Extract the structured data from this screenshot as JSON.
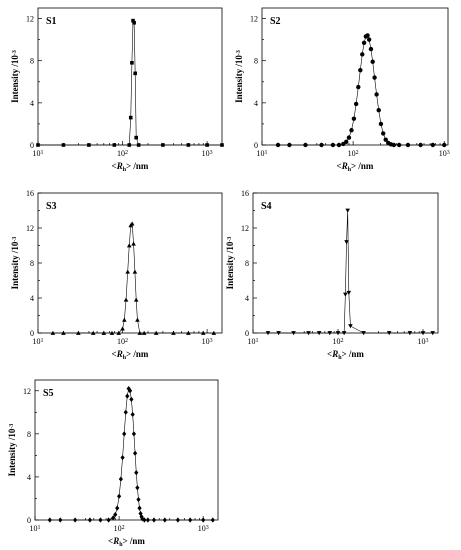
{
  "chart_data": [
    {
      "type": "line",
      "panel_label": "S1",
      "marker": "square",
      "xscale": "log",
      "xlim": [
        10,
        1500
      ],
      "ylim": [
        0,
        13
      ],
      "xticks": [
        {
          "value": 10,
          "base": "10",
          "exp": "1"
        },
        {
          "value": 100,
          "base": "10",
          "exp": "2"
        },
        {
          "value": 1000,
          "base": "10",
          "exp": "3"
        }
      ],
      "yticks": [
        0,
        4,
        8,
        12
      ],
      "xlabel": {
        "pre": "<",
        "sym": "R",
        "sub": "h",
        "post": "> /nm"
      },
      "ylabel": {
        "text": "Intensity /10",
        "sup": "-3"
      },
      "x": [
        10,
        20,
        40,
        80,
        120,
        125,
        129,
        133,
        137,
        141,
        145,
        155,
        300,
        600,
        1000,
        1500
      ],
      "y": [
        0,
        0,
        0,
        0,
        0,
        2.6,
        7.8,
        11.8,
        11.6,
        6.8,
        0.7,
        0,
        0,
        0,
        0,
        0
      ]
    },
    {
      "type": "line",
      "panel_label": "S2",
      "marker": "circle",
      "xscale": "log",
      "xlim": [
        10,
        1100
      ],
      "ylim": [
        0,
        13
      ],
      "xticks": [
        {
          "value": 10,
          "base": "10",
          "exp": "1"
        },
        {
          "value": 100,
          "base": "10",
          "exp": "2"
        },
        {
          "value": 1000,
          "base": "10",
          "exp": "3"
        }
      ],
      "yticks": [
        0,
        4,
        8,
        12
      ],
      "xlabel": {
        "pre": "<",
        "sym": "R",
        "sub": "h",
        "post": "> /nm"
      },
      "ylabel": {
        "text": "Intensity /10",
        "sup": "-3"
      },
      "x": [
        15,
        20,
        30,
        45,
        60,
        70,
        78,
        84,
        90,
        96,
        102,
        108,
        114,
        120,
        126,
        132,
        138,
        144,
        150,
        157,
        164,
        172,
        181,
        191,
        202,
        214,
        228,
        243,
        260,
        280,
        320,
        400,
        550,
        750,
        1000
      ],
      "y": [
        0,
        0,
        0,
        0,
        0,
        0,
        0.1,
        0.3,
        0.7,
        1.4,
        2.5,
        3.9,
        5.5,
        7.1,
        8.6,
        9.7,
        10.3,
        10.4,
        10.0,
        9.1,
        7.9,
        6.4,
        4.8,
        3.3,
        2.0,
        1.1,
        0.5,
        0.2,
        0.06,
        0,
        0,
        0,
        0,
        0,
        0
      ]
    },
    {
      "type": "line",
      "panel_label": "S3",
      "marker": "triangle-up",
      "xscale": "log",
      "xlim": [
        10,
        1500
      ],
      "ylim": [
        0,
        16
      ],
      "xticks": [
        {
          "value": 10,
          "base": "10",
          "exp": "1"
        },
        {
          "value": 100,
          "base": "10",
          "exp": "2"
        },
        {
          "value": 1000,
          "base": "10",
          "exp": "3"
        }
      ],
      "yticks": [
        0,
        4,
        8,
        12,
        16
      ],
      "xlabel": {
        "pre": "<",
        "sym": "R",
        "sub": "h",
        "post": "> /nm"
      },
      "ylabel": {
        "text": "Intensity /10",
        "sup": "-3"
      },
      "x": [
        15,
        20,
        30,
        45,
        60,
        75,
        90,
        100,
        105,
        110,
        115,
        120,
        125,
        130,
        135,
        140,
        145,
        150,
        160,
        180,
        250,
        400,
        600,
        900,
        1200
      ],
      "y": [
        0,
        0,
        0,
        0,
        0,
        0,
        0,
        0.5,
        1.5,
        3.8,
        7.0,
        10.0,
        12.3,
        12.5,
        10.2,
        7.0,
        3.8,
        1.5,
        0,
        0,
        0,
        0,
        0,
        0,
        0
      ]
    },
    {
      "type": "line",
      "panel_label": "S4",
      "marker": "triangle-down",
      "xscale": "log",
      "xlim": [
        10,
        1500
      ],
      "ylim": [
        0,
        16
      ],
      "xticks": [
        {
          "value": 10,
          "base": "10",
          "exp": "1"
        },
        {
          "value": 100,
          "base": "10",
          "exp": "2"
        },
        {
          "value": 1000,
          "base": "10",
          "exp": "3"
        }
      ],
      "yticks": [
        0,
        4,
        8,
        12,
        16
      ],
      "xlabel": {
        "pre": "<",
        "sym": "R",
        "sub": "h",
        "post": "> /nm"
      },
      "ylabel": {
        "text": "Intensity /10",
        "sup": "-3"
      },
      "x": [
        15,
        20,
        30,
        45,
        60,
        80,
        100,
        118,
        122,
        126,
        130,
        134,
        140,
        200,
        400,
        700,
        1000,
        1300
      ],
      "y": [
        0,
        0,
        0,
        0,
        0,
        0,
        0,
        0,
        4.4,
        10.4,
        14.0,
        4.6,
        0.8,
        0,
        0,
        0,
        0,
        0
      ]
    },
    {
      "type": "line",
      "panel_label": "S5",
      "marker": "diamond",
      "xscale": "log",
      "xlim": [
        10,
        1500
      ],
      "ylim": [
        0,
        13
      ],
      "xticks": [
        {
          "value": 10,
          "base": "10",
          "exp": "1"
        },
        {
          "value": 100,
          "base": "10",
          "exp": "2"
        },
        {
          "value": 1000,
          "base": "10",
          "exp": "3"
        }
      ],
      "yticks": [
        0,
        4,
        8,
        12
      ],
      "xlabel": {
        "pre": "<",
        "sym": "R",
        "sub": "h",
        "post": "> /nm"
      },
      "ylabel": {
        "text": "Intensity /10",
        "sup": "-3"
      },
      "x": [
        15,
        20,
        30,
        45,
        60,
        75,
        85,
        90,
        95,
        100,
        105,
        110,
        115,
        120,
        125,
        130,
        135,
        140,
        145,
        150,
        155,
        160,
        165,
        170,
        175,
        180,
        185,
        190,
        200,
        220,
        260,
        350,
        500,
        700,
        1000,
        1300
      ],
      "y": [
        0,
        0,
        0,
        0,
        0,
        0,
        0.2,
        0.5,
        1.1,
        2.2,
        3.8,
        5.8,
        8.0,
        10.0,
        11.5,
        12.2,
        12.0,
        11.2,
        9.8,
        8.0,
        6.2,
        4.4,
        3.0,
        1.9,
        1.1,
        0.6,
        0.3,
        0.1,
        0,
        0,
        0,
        0,
        0,
        0,
        0,
        0
      ]
    }
  ]
}
